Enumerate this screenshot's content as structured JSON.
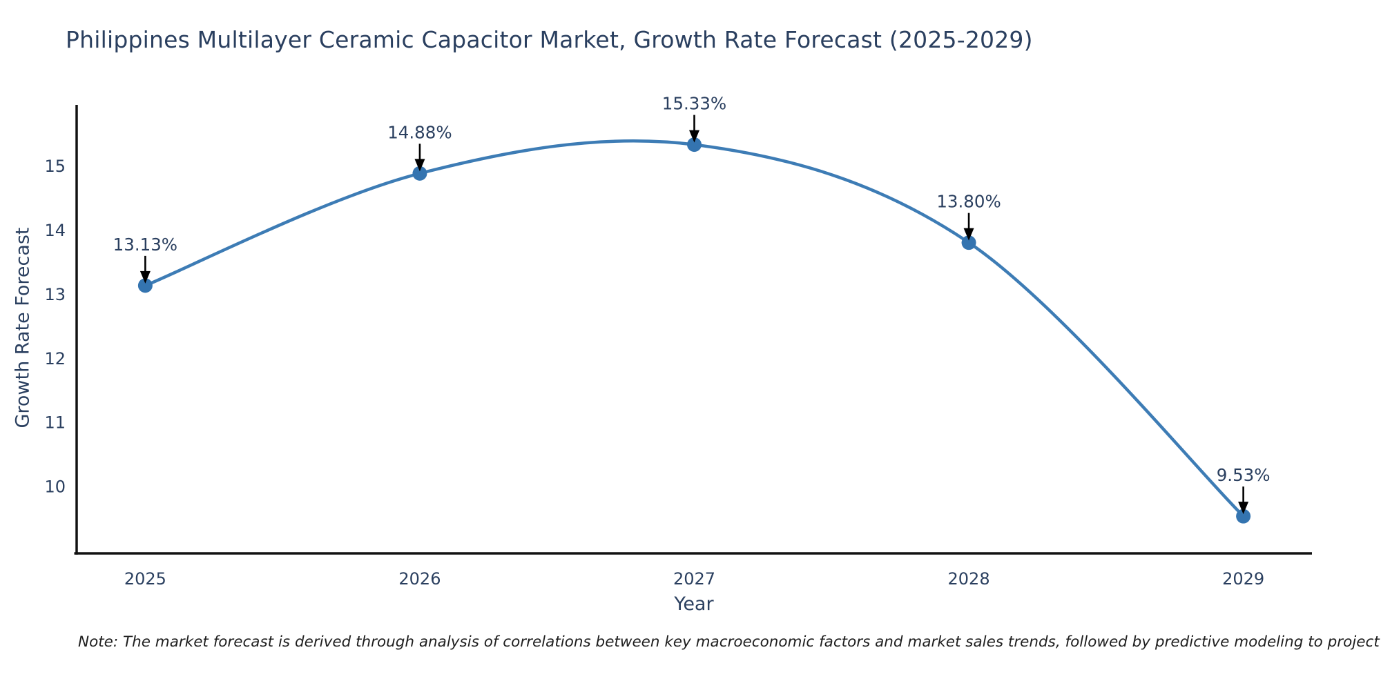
{
  "note": "Note: The market forecast is derived through analysis of correlations between key macroeconomic factors and market sales trends, followed by predictive modeling to project future sales.",
  "chart_data": {
    "type": "line",
    "title": "Philippines Multilayer Ceramic Capacitor Market, Growth Rate Forecast (2025-2029)",
    "xlabel": "Year",
    "ylabel": "Growth Rate Forecast",
    "line_shape": "spline",
    "grid": false,
    "legend": false,
    "categories": [
      2025,
      2026,
      2027,
      2028,
      2029
    ],
    "values": [
      13.13,
      14.88,
      15.33,
      13.8,
      9.53
    ],
    "point_labels": [
      "13.13%",
      "14.88%",
      "15.33%",
      "13.80%",
      "9.53%"
    ],
    "yticks": [
      "10",
      "11",
      "12",
      "13",
      "14",
      "15"
    ],
    "ylim": [
      8.95,
      15.95
    ],
    "xlim": [
      2024.75,
      2029.25
    ],
    "annotation_style": "label-above-with-down-arrow",
    "colors": {
      "line": "#3d7cb5",
      "marker": "#3474b0",
      "annotation_arrow": "#000000",
      "text": "#2a3f5f",
      "axis": "#111111",
      "note_text": "#1f1f1f"
    }
  }
}
